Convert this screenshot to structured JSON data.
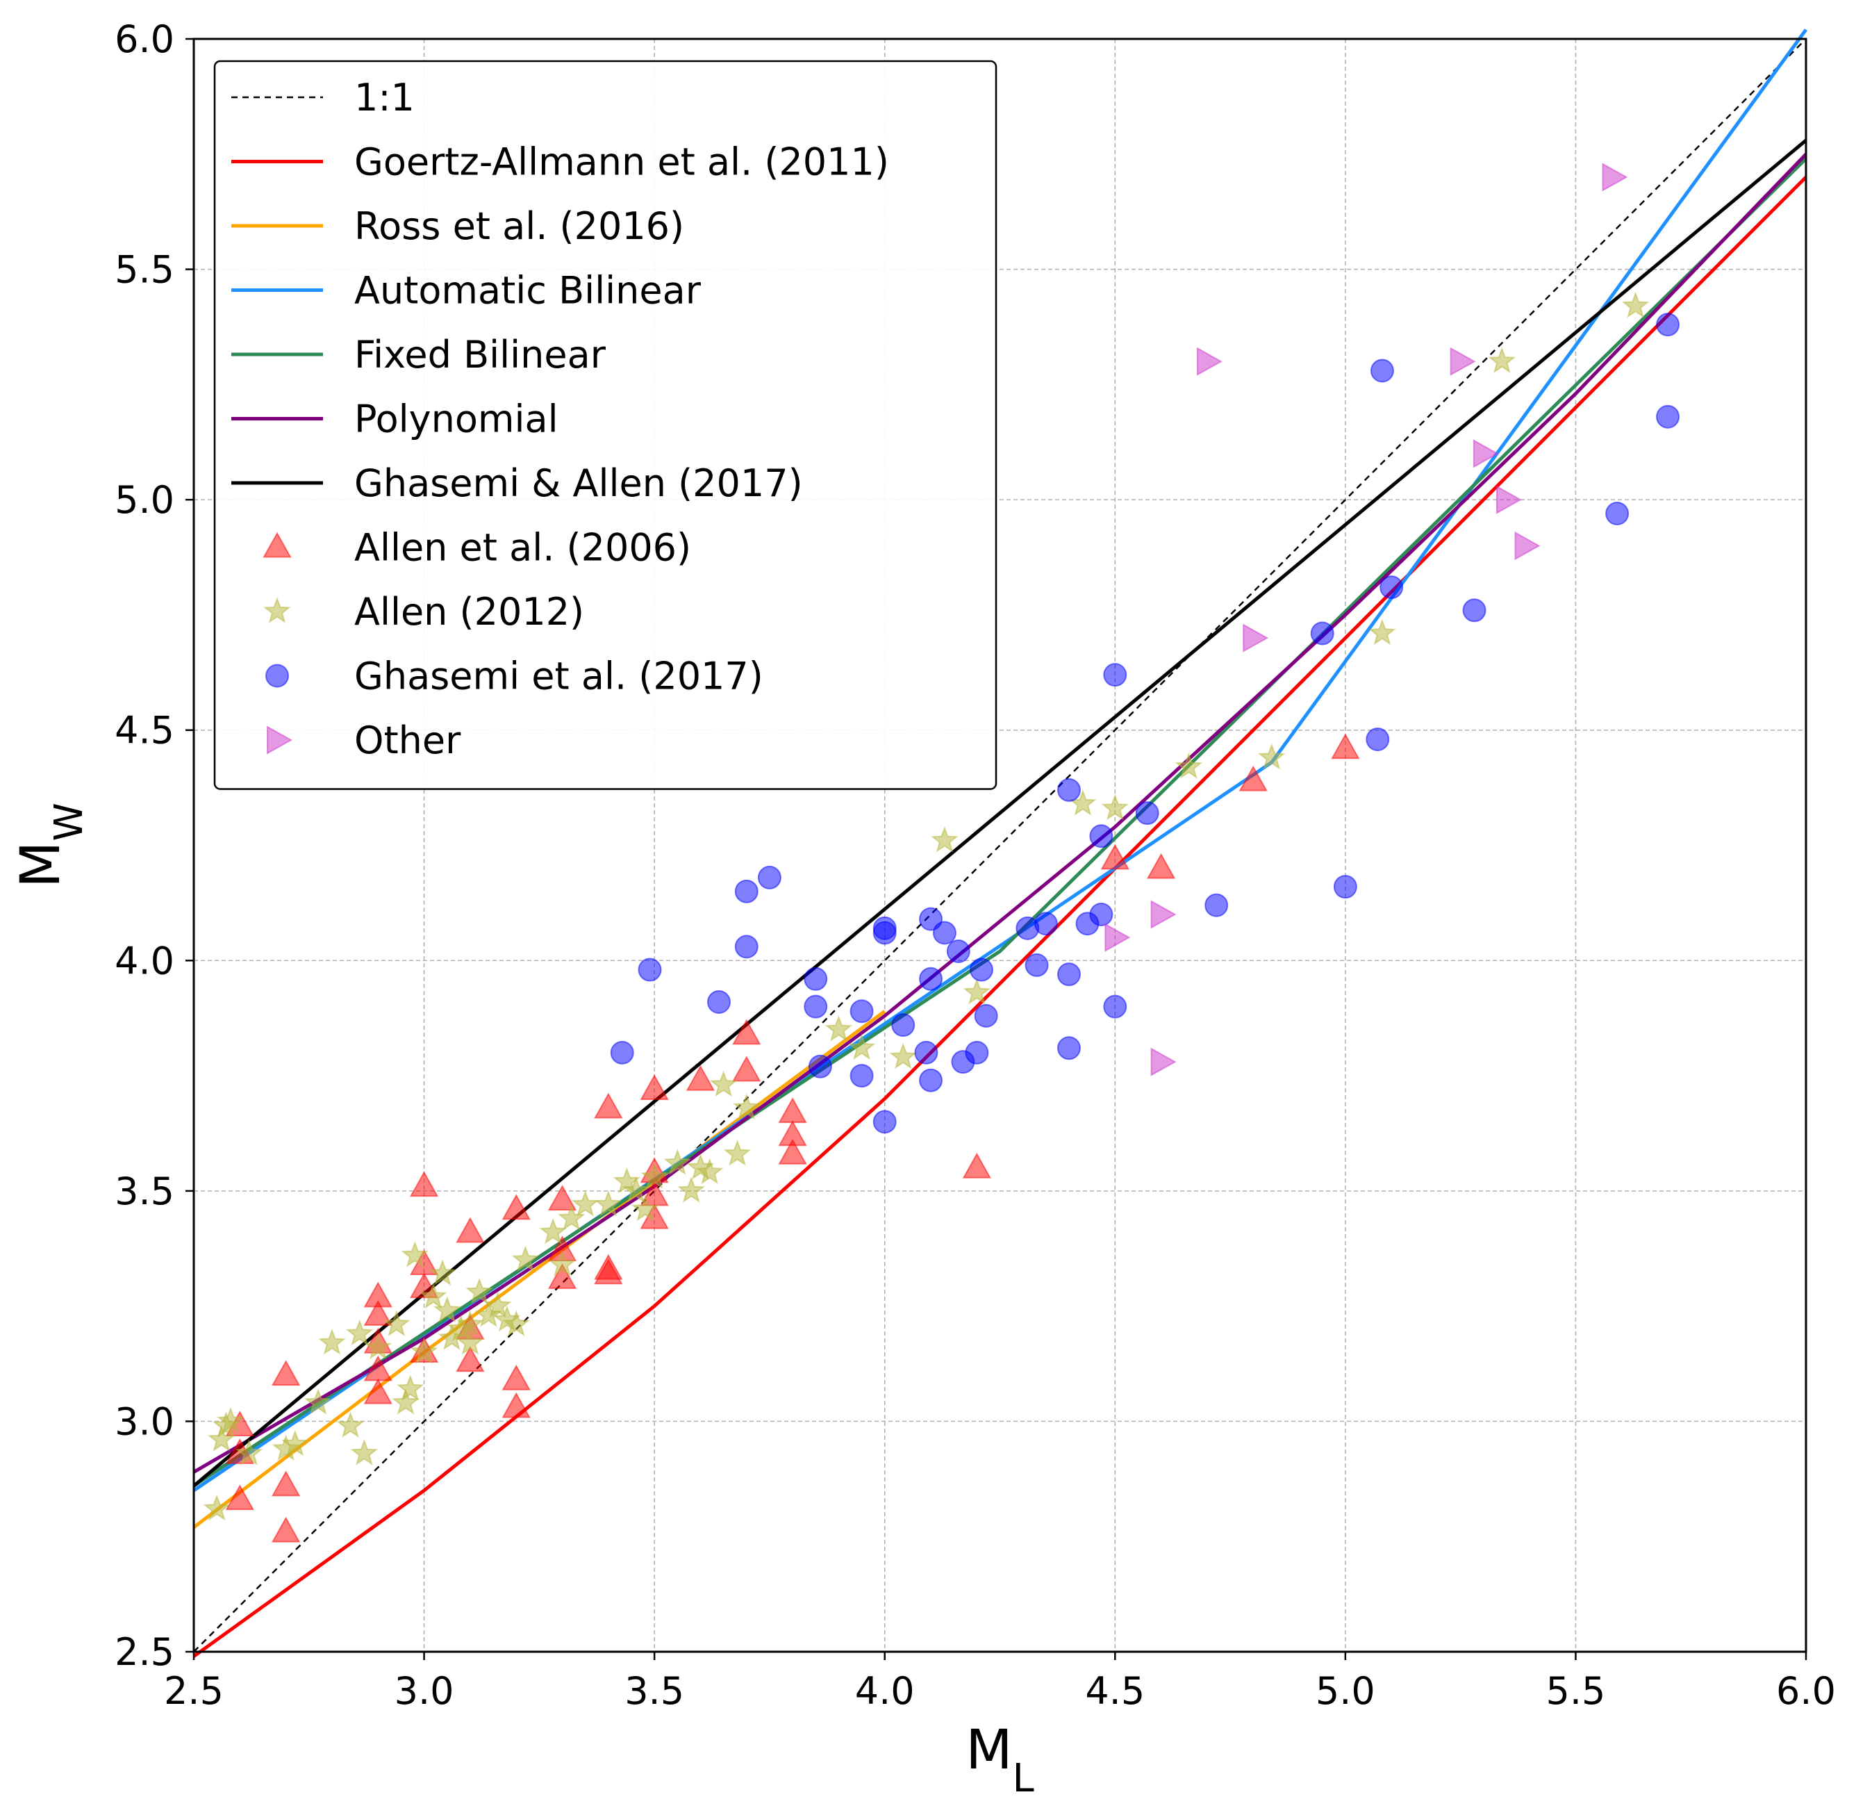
{
  "chart_data": {
    "type": "scatter",
    "xlabel": {
      "main": "M",
      "sub": "L"
    },
    "ylabel": {
      "main": "M",
      "sub": "W"
    },
    "xlim": [
      2.5,
      6.0
    ],
    "ylim": [
      2.5,
      6.0
    ],
    "xticks": [
      "2.5",
      "3.0",
      "3.5",
      "4.0",
      "4.5",
      "5.0",
      "5.5",
      "6.0"
    ],
    "yticks": [
      "2.5",
      "3.0",
      "3.5",
      "4.0",
      "4.5",
      "5.0",
      "5.5",
      "6.0"
    ],
    "grid": true,
    "legend_position": "top-left",
    "lines": [
      {
        "name": "1:1",
        "color": "#000000",
        "dashed": true,
        "x": [
          2.5,
          6.0
        ],
        "y": [
          2.5,
          6.0
        ]
      },
      {
        "name": "Goertz-Allmann et al. (2011)",
        "color": "#ff0000",
        "x": [
          2.5,
          3.0,
          3.5,
          4.0,
          4.5,
          5.0,
          5.5,
          6.0
        ],
        "y": [
          2.49,
          2.85,
          3.25,
          3.7,
          4.2,
          4.7,
          5.2,
          5.7
        ]
      },
      {
        "name": "Ross et al. (2016)",
        "color": "#ffa500",
        "x": [
          2.5,
          3.0,
          3.5,
          4.0
        ],
        "y": [
          2.77,
          3.15,
          3.52,
          3.89
        ]
      },
      {
        "name": "Automatic Bilinear",
        "color": "#1e90ff",
        "x": [
          2.5,
          4.84,
          6.0
        ],
        "y": [
          2.85,
          4.43,
          6.02
        ]
      },
      {
        "name": "Fixed Bilinear",
        "color": "#2e8b57",
        "x": [
          2.5,
          4.25,
          6.0
        ],
        "y": [
          2.86,
          4.02,
          5.74
        ]
      },
      {
        "name": "Polynomial",
        "color": "#800080",
        "x": [
          2.5,
          3.0,
          3.5,
          4.0,
          4.5,
          5.0,
          5.5,
          6.0
        ],
        "y": [
          2.89,
          3.18,
          3.51,
          3.88,
          4.29,
          4.75,
          5.23,
          5.75
        ]
      },
      {
        "name": "Ghasemi & Allen (2017)",
        "color": "#000000",
        "x": [
          2.5,
          6.0
        ],
        "y": [
          2.86,
          5.78
        ]
      }
    ],
    "scatter": [
      {
        "name": "Allen et al. (2006)",
        "marker": "triangle-up",
        "color": "#ff0000",
        "opacity": 0.5,
        "x": [
          2.6,
          2.6,
          2.6,
          2.7,
          2.7,
          2.7,
          2.9,
          2.9,
          2.9,
          2.9,
          2.9,
          3.0,
          3.0,
          3.0,
          3.0,
          3.1,
          3.1,
          3.1,
          3.2,
          3.2,
          3.2,
          3.3,
          3.3,
          3.3,
          3.4,
          3.4,
          3.4,
          3.5,
          3.5,
          3.5,
          3.5,
          3.6,
          3.7,
          3.7,
          3.8,
          3.8,
          3.8,
          4.2,
          4.5,
          4.6,
          4.8,
          5.0
        ],
        "y": [
          2.99,
          2.93,
          2.83,
          3.1,
          2.86,
          2.76,
          3.27,
          3.23,
          3.17,
          3.11,
          3.06,
          3.51,
          3.34,
          3.29,
          3.15,
          3.41,
          3.2,
          3.13,
          3.46,
          3.09,
          3.03,
          3.48,
          3.37,
          3.31,
          3.68,
          3.33,
          3.32,
          3.72,
          3.54,
          3.49,
          3.44,
          3.74,
          3.84,
          3.76,
          3.67,
          3.62,
          3.58,
          3.55,
          4.22,
          4.2,
          4.39,
          4.46
        ]
      },
      {
        "name": "Allen (2012)",
        "marker": "star",
        "color": "#b5b53a",
        "opacity": 0.5,
        "x": [
          2.55,
          2.56,
          2.57,
          2.58,
          2.62,
          2.7,
          2.72,
          2.77,
          2.8,
          2.84,
          2.86,
          2.87,
          2.9,
          2.94,
          2.96,
          2.97,
          2.98,
          3.0,
          3.02,
          3.04,
          3.05,
          3.06,
          3.08,
          3.1,
          3.1,
          3.12,
          3.14,
          3.16,
          3.18,
          3.2,
          3.22,
          3.28,
          3.3,
          3.32,
          3.35,
          3.4,
          3.44,
          3.46,
          3.48,
          3.5,
          3.55,
          3.58,
          3.6,
          3.62,
          3.65,
          3.68,
          3.7,
          3.9,
          3.95,
          4.04,
          4.13,
          4.2,
          4.43,
          4.5,
          4.66,
          4.84,
          5.08,
          5.34,
          5.63
        ],
        "y": [
          2.81,
          2.96,
          2.99,
          3.0,
          2.93,
          2.94,
          2.95,
          3.04,
          3.17,
          2.99,
          3.19,
          2.93,
          3.16,
          3.21,
          3.04,
          3.07,
          3.36,
          3.15,
          3.27,
          3.32,
          3.24,
          3.18,
          3.2,
          3.17,
          3.21,
          3.28,
          3.23,
          3.25,
          3.22,
          3.21,
          3.35,
          3.41,
          3.34,
          3.44,
          3.47,
          3.47,
          3.52,
          3.5,
          3.46,
          3.53,
          3.56,
          3.5,
          3.55,
          3.54,
          3.73,
          3.58,
          3.68,
          3.85,
          3.81,
          3.79,
          4.26,
          3.93,
          4.34,
          4.33,
          4.42,
          4.44,
          4.71,
          5.3,
          5.42
        ]
      },
      {
        "name": "Ghasemi et al. (2017)",
        "marker": "circle",
        "color": "#0000ff",
        "opacity": 0.5,
        "x": [
          3.43,
          3.49,
          3.64,
          3.7,
          3.7,
          3.75,
          3.85,
          3.85,
          3.86,
          3.95,
          3.95,
          4.0,
          4.0,
          4.0,
          4.04,
          4.09,
          4.1,
          4.1,
          4.1,
          4.13,
          4.16,
          4.17,
          4.2,
          4.21,
          4.22,
          4.31,
          4.33,
          4.35,
          4.4,
          4.4,
          4.4,
          4.44,
          4.47,
          4.47,
          4.5,
          4.5,
          4.57,
          4.72,
          4.95,
          5.0,
          5.07,
          5.08,
          5.1,
          5.28,
          5.59,
          5.7,
          5.7
        ],
        "y": [
          3.8,
          3.98,
          3.91,
          4.15,
          4.03,
          4.18,
          3.96,
          3.9,
          3.77,
          3.89,
          3.75,
          4.07,
          4.06,
          3.65,
          3.86,
          3.8,
          4.09,
          3.96,
          3.74,
          4.06,
          4.02,
          3.78,
          3.8,
          3.98,
          3.88,
          4.07,
          3.99,
          4.08,
          4.37,
          3.97,
          3.81,
          4.08,
          4.27,
          4.1,
          4.62,
          3.9,
          4.32,
          4.12,
          4.71,
          4.16,
          4.48,
          5.28,
          4.81,
          4.76,
          4.97,
          5.38,
          5.18
        ]
      },
      {
        "name": "Other",
        "marker": "triangle-right",
        "color": "#cc33cc",
        "opacity": 0.5,
        "x": [
          4.5,
          4.6,
          4.6,
          4.7,
          4.8,
          5.25,
          5.3,
          5.35,
          5.39,
          5.58
        ],
        "y": [
          4.05,
          4.1,
          3.78,
          5.3,
          4.7,
          5.3,
          5.1,
          5.0,
          4.9,
          5.7
        ]
      }
    ]
  }
}
